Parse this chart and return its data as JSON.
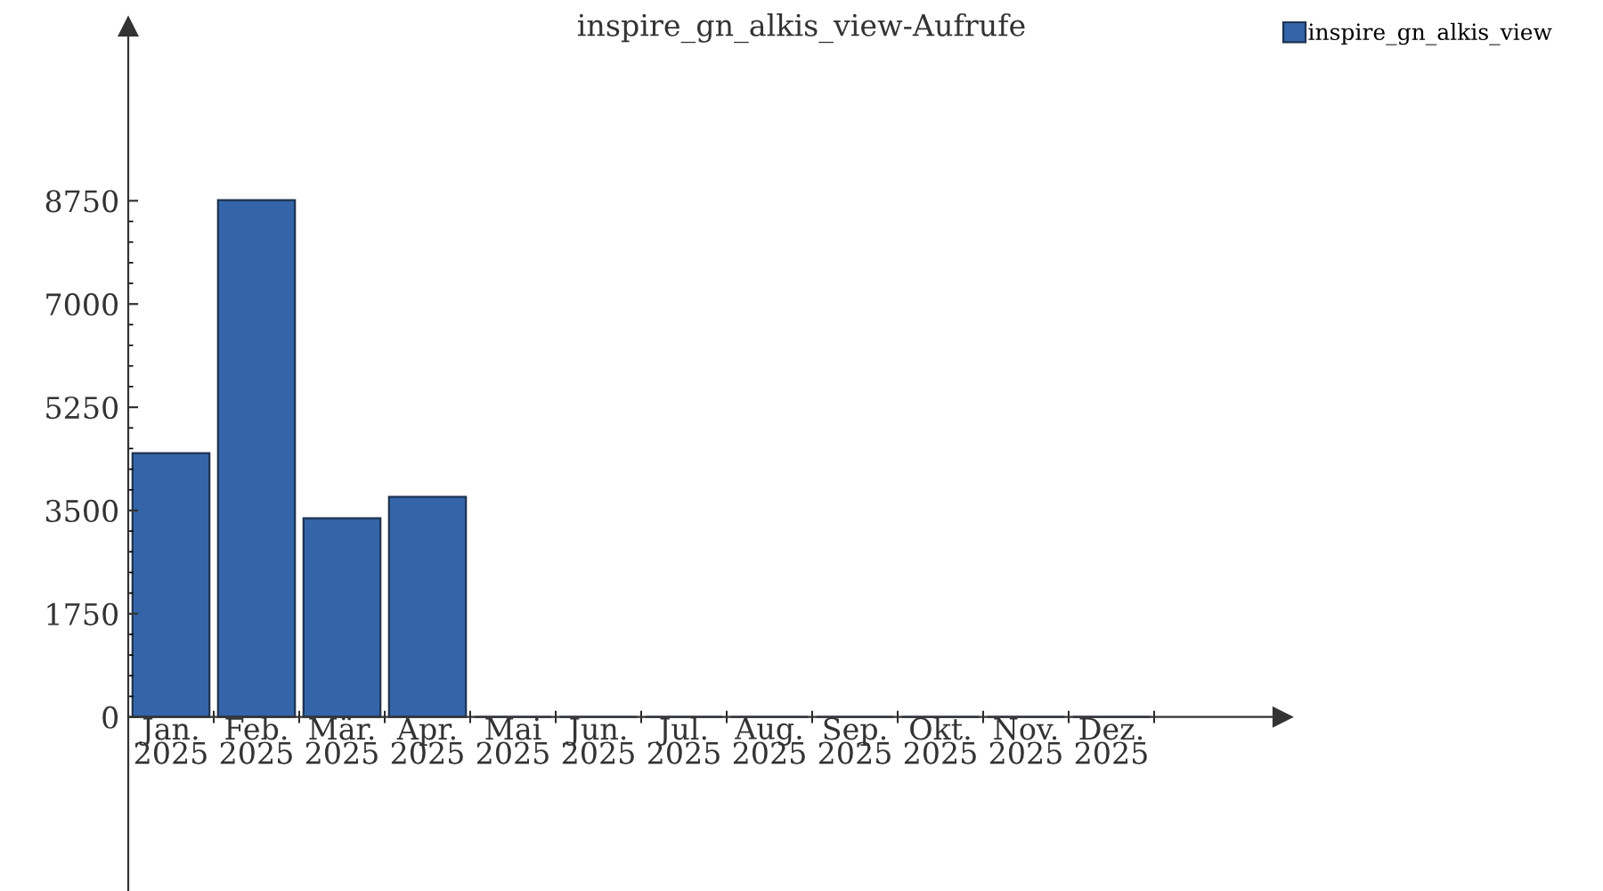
{
  "chart_data": {
    "type": "bar",
    "title": "inspire_gn_alkis_view-Aufrufe",
    "categories": [
      "Jan.\n2025",
      "Feb.\n2025",
      "Mär.\n2025",
      "Apr.\n2025",
      "Mai\n2025",
      "Jun.\n2025",
      "Jul.\n2025",
      "Aug.\n2025",
      "Sep.\n2025",
      "Okt.\n2025",
      "Nov.\n2025",
      "Dez.\n2025"
    ],
    "series": [
      {
        "name": "inspire_gn_alkis_view",
        "color": "#3465a8",
        "values": [
          4470,
          8760,
          3370,
          3730,
          0,
          0,
          0,
          0,
          0,
          0,
          0,
          0
        ]
      }
    ],
    "ylim": [
      -2950,
      11700
    ],
    "yticks": [
      0,
      1750,
      3500,
      5250,
      7000,
      8750
    ],
    "legend": "top right"
  }
}
